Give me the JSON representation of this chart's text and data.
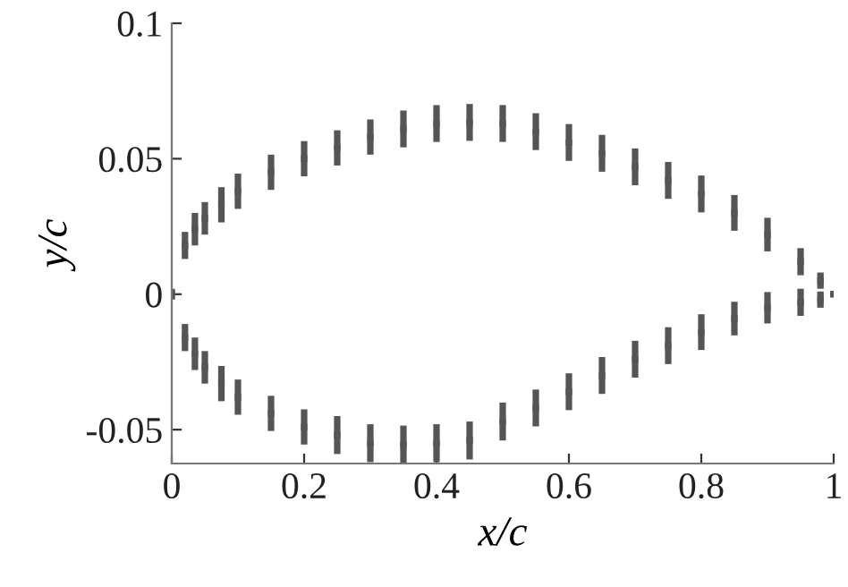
{
  "chart_data": {
    "type": "scatter",
    "xlabel": "x/c",
    "ylabel": "y/c",
    "xlim": [
      0,
      1
    ],
    "ylim": [
      -0.0625,
      0.1
    ],
    "xticks": [
      0,
      0.2,
      0.4,
      0.6,
      0.8,
      1
    ],
    "yticks": [
      {
        "value": -0.05,
        "label": "-0.05"
      },
      0,
      0.05,
      0.1
    ],
    "marker": "square",
    "grid": false,
    "legend": false,
    "series": [
      {
        "color": "#555555",
        "x": [
          0,
          0.02,
          0.035,
          0.05,
          0.075,
          0.1,
          0.15,
          0.2,
          0.25,
          0.3,
          0.35,
          0.4,
          0.45,
          0.5,
          0.55,
          0.6,
          0.65,
          0.7,
          0.75,
          0.8,
          0.85,
          0.9,
          0.95,
          0.98,
          1
        ],
        "values": [
          0,
          0.018,
          0.024,
          0.028,
          0.033,
          0.038,
          0.045,
          0.05,
          0.054,
          0.058,
          0.061,
          0.063,
          0.0634,
          0.063,
          0.06,
          0.056,
          0.052,
          0.047,
          0.042,
          0.037,
          0.03,
          0.022,
          0.012,
          0.005,
          0
        ],
        "errors": [
          0.002,
          0.005,
          0.006,
          0.006,
          0.0065,
          0.0065,
          0.0065,
          0.0065,
          0.0065,
          0.0065,
          0.0068,
          0.0068,
          0.0068,
          0.0068,
          0.0068,
          0.0068,
          0.0068,
          0.0068,
          0.0068,
          0.0068,
          0.0066,
          0.0062,
          0.005,
          0.003,
          0.001
        ]
      },
      {
        "color": "#555555",
        "x": [
          0.02,
          0.035,
          0.05,
          0.075,
          0.1,
          0.15,
          0.2,
          0.25,
          0.3,
          0.35,
          0.4,
          0.45,
          0.5,
          0.55,
          0.6,
          0.65,
          0.7,
          0.75,
          0.8,
          0.85,
          0.9,
          0.95,
          0.98,
          1
        ],
        "values": [
          -0.016,
          -0.022,
          -0.027,
          -0.033,
          -0.038,
          -0.044,
          -0.049,
          -0.052,
          -0.055,
          -0.0555,
          -0.055,
          -0.054,
          -0.047,
          -0.042,
          -0.036,
          -0.03,
          -0.024,
          -0.019,
          -0.014,
          -0.009,
          -0.005,
          -0.003,
          -0.002,
          0
        ],
        "errors": [
          0.005,
          0.006,
          0.006,
          0.0065,
          0.0065,
          0.0065,
          0.0065,
          0.007,
          0.007,
          0.007,
          0.007,
          0.007,
          0.007,
          0.0068,
          0.0068,
          0.0068,
          0.0068,
          0.0068,
          0.0066,
          0.0062,
          0.0058,
          0.005,
          0.003,
          0.001
        ]
      }
    ]
  }
}
